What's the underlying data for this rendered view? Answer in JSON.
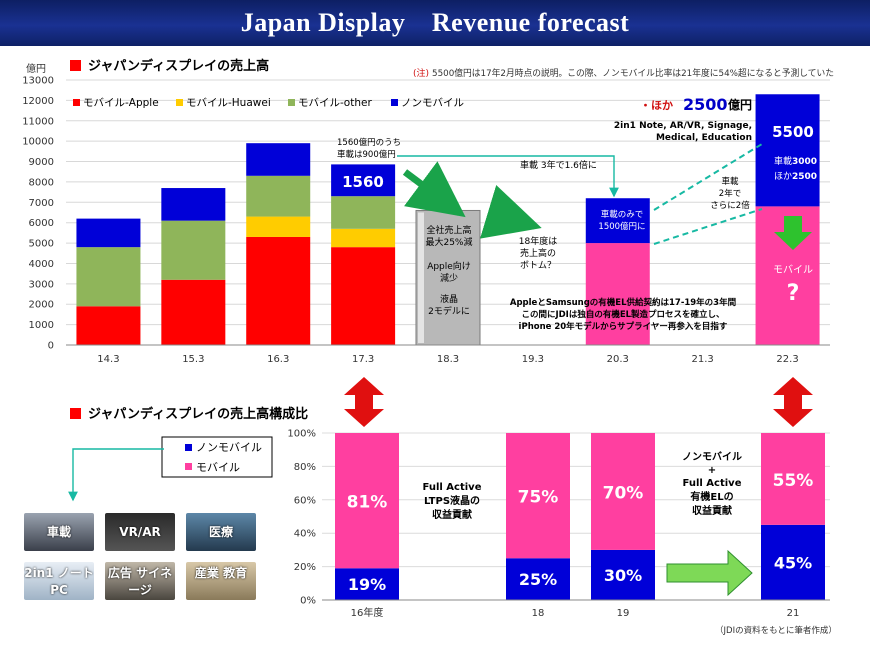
{
  "title": "Japan Display　Revenue forecast",
  "colors": {
    "apple": "#ff0000",
    "huawei": "#ffcc00",
    "other": "#8fb55a",
    "non_mobile": "#0000d8",
    "mobile": "#ff3fa0",
    "gray_bar": "#b8b8b8",
    "green_arrow": "#1aa34a",
    "teal": "#17b9a3",
    "red_arrow": "#e01010"
  },
  "top_chart": {
    "title": "ジャパンディスプレイの売上高",
    "unit": "億円",
    "note_mark": "(注)",
    "note": "5500億円は17年2月時点の説明。この際、ノンモバイル比率は21年度に54%超になると予測していた",
    "legend": [
      "モバイル-Apple",
      "モバイル-Huawei",
      "モバイル-other",
      "ノンモバイル"
    ],
    "callouts": {
      "hoka_dot": "・ほか",
      "hoka_value": "2500",
      "hoka_unit": "億円",
      "hoka_list_1": "2in1 Note, AR/VR, Signage,",
      "hoka_list_2": "Medical, Education",
      "v1560": "1560",
      "note_1560_1": "1560億円のうち",
      "note_1560_2": "車載は900億円",
      "auto_16": "車載 3年で1.6倍に",
      "auto_only_1": "車載のみで",
      "auto_only_2": "1500億円に",
      "auto_2x_1": "車載",
      "auto_2x_2": "2年で",
      "auto_2x_3": "さらに2倍",
      "v5500": "5500",
      "auto_3000_a": "車載",
      "auto_3000_b": "3000",
      "other_2500_a": "ほか",
      "other_2500_b": "2500",
      "mobile_label": "モバイル",
      "question": "?",
      "bottom_1": "18年度は",
      "bottom_2": "売上高の",
      "bottom_3": "ボトム？",
      "gray_1": "全社売上高",
      "gray_2": "最大25%減",
      "gray_3": "Apple向け",
      "gray_4": "減少",
      "gray_5": "液晶",
      "gray_6": "2モデルに",
      "oled_1": "AppleとSamsungの有機EL供給契約は17-19年の3年間",
      "oled_2": "この間にJDIは独自の有機EL製造プロセスを確立し、",
      "oled_3": "iPhone 20年モデルからサプライヤー再参入を目指す"
    }
  },
  "chart_data": [
    {
      "type": "bar",
      "stacked": true,
      "title": "ジャパンディスプレイの売上高",
      "ylabel": "億円",
      "ylim": [
        0,
        13000
      ],
      "yticks": [
        0,
        1000,
        2000,
        3000,
        4000,
        5000,
        6000,
        7000,
        8000,
        9000,
        10000,
        11000,
        12000,
        13000
      ],
      "categories": [
        "14.3",
        "15.3",
        "16.3",
        "17.3",
        "18.3",
        "19.3",
        "20.3",
        "21.3",
        "22.3"
      ],
      "series": [
        {
          "name": "モバイル-Apple",
          "values": [
            1900,
            3200,
            5300,
            4800,
            null,
            null,
            null,
            null,
            null
          ]
        },
        {
          "name": "モバイル-Huawei",
          "values": [
            0,
            0,
            1000,
            900,
            null,
            null,
            null,
            null,
            null
          ]
        },
        {
          "name": "モバイル-other",
          "values": [
            2900,
            2900,
            2000,
            1600,
            null,
            null,
            null,
            null,
            null
          ]
        },
        {
          "name": "ノンモバイル",
          "values": [
            1400,
            1600,
            1600,
            1560,
            null,
            null,
            2200,
            null,
            5500
          ]
        },
        {
          "name": "モバイル",
          "values": [
            null,
            null,
            null,
            null,
            null,
            null,
            5000,
            null,
            6800
          ]
        },
        {
          "name": "全社売上高",
          "values": [
            null,
            null,
            null,
            null,
            6600,
            null,
            null,
            null,
            null
          ]
        }
      ]
    },
    {
      "type": "bar",
      "stacked": true,
      "percent": true,
      "title": "ジャパンディスプレイの売上高構成比",
      "ylim": [
        0,
        100
      ],
      "yticks": [
        "0%",
        "20%",
        "40%",
        "60%",
        "80%",
        "100%"
      ],
      "categories": [
        "16年度",
        "18",
        "19",
        "21"
      ],
      "series": [
        {
          "name": "ノンモバイル",
          "values": [
            19,
            25,
            30,
            45
          ]
        },
        {
          "name": "モバイル",
          "values": [
            81,
            75,
            70,
            55
          ]
        }
      ]
    }
  ],
  "bottom_chart": {
    "title": "ジャパンディスプレイの売上高構成比",
    "legend": [
      "ノンモバイル",
      "モバイル"
    ],
    "text_mid_1": "Full Active",
    "text_mid_2": "LTPS液晶の",
    "text_mid_3": "収益貢献",
    "text_right_1": "ノンモバイル",
    "text_right_2": "+",
    "text_right_3": "Full Active",
    "text_right_4": "有機ELの",
    "text_right_5": "収益貢献",
    "source": "（JDIの資料をもとに筆者作成）"
  },
  "tiles": [
    "車載",
    "VR/AR",
    "医療",
    "2in1 ノートPC",
    "広告 サイネージ",
    "産業 教育"
  ]
}
